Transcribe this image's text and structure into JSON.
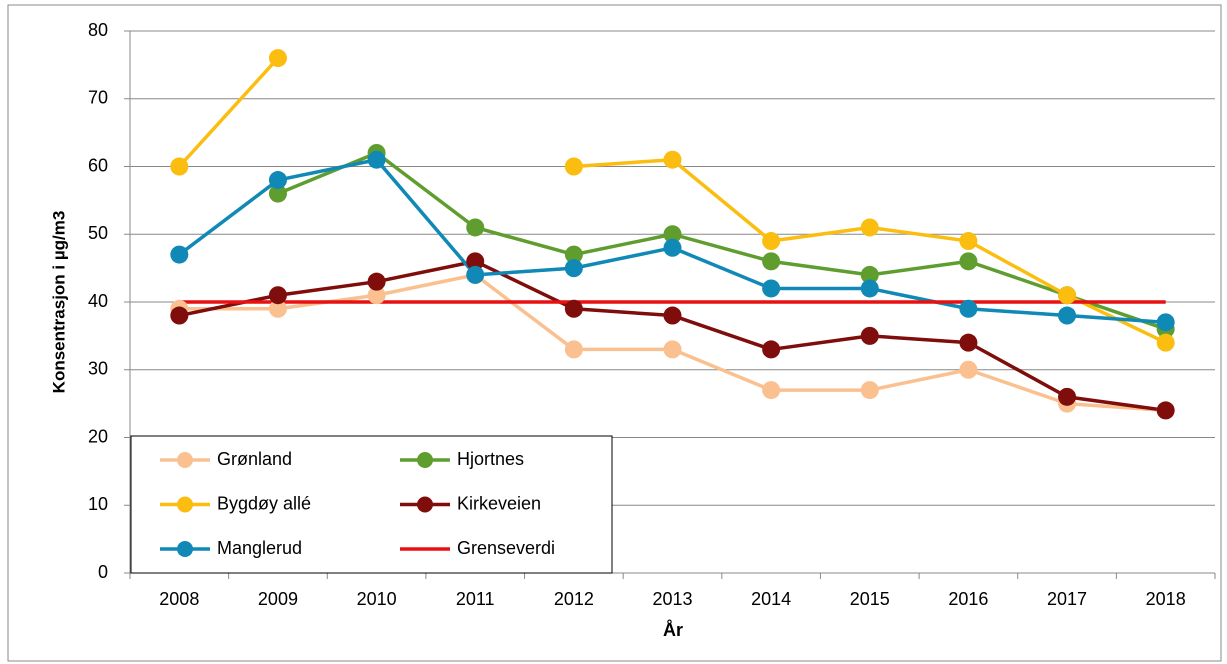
{
  "chart_data": {
    "type": "line",
    "y_label": "Konsentrasjon i µg/m3",
    "x_label": "År",
    "categories": [
      "2008",
      "2009",
      "2010",
      "2011",
      "2012",
      "2013",
      "2014",
      "2015",
      "2016",
      "2017",
      "2018"
    ],
    "series": [
      {
        "name": "Grønland",
        "color": "#fac090",
        "values": [
          39,
          39,
          41,
          44,
          33,
          33,
          27,
          27,
          30,
          25,
          24
        ]
      },
      {
        "name": "Hjortnes",
        "color": "#5f9d2e",
        "values": [
          null,
          56,
          62,
          51,
          47,
          50,
          46,
          44,
          46,
          41,
          36
        ]
      },
      {
        "name": "Bygdøy allé",
        "color": "#fbbd10",
        "values": [
          60,
          76,
          null,
          null,
          60,
          61,
          49,
          51,
          49,
          41,
          34
        ]
      },
      {
        "name": "Kirkeveien",
        "color": "#7f0d0b",
        "values": [
          38,
          41,
          43,
          46,
          39,
          38,
          33,
          35,
          34,
          26,
          24
        ]
      },
      {
        "name": "Manglerud",
        "color": "#1089b6",
        "values": [
          47,
          58,
          61,
          44,
          45,
          48,
          42,
          42,
          39,
          38,
          37
        ]
      },
      {
        "name": "Grenseverdi",
        "color": "#e81010",
        "marker": false,
        "values": [
          40,
          40,
          40,
          40,
          40,
          40,
          40,
          40,
          40,
          40,
          40
        ]
      }
    ],
    "ylim": [
      0,
      80
    ],
    "yticks": [
      0,
      10,
      20,
      30,
      40,
      50,
      60,
      70,
      80
    ],
    "grid": true
  }
}
